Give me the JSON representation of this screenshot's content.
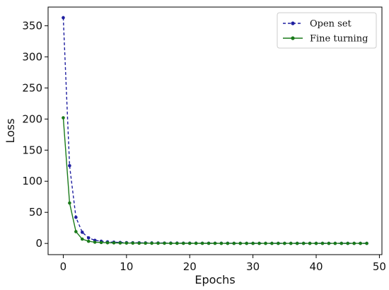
{
  "chart_data": {
    "type": "line",
    "xlabel": "Epochs",
    "ylabel": "Loss",
    "xlim": [
      -2.4,
      50.4
    ],
    "ylim": [
      -18,
      380
    ],
    "xticks": [
      0,
      10,
      20,
      30,
      40,
      50
    ],
    "yticks": [
      0,
      50,
      100,
      150,
      200,
      250,
      300,
      350
    ],
    "grid": false,
    "legend_position": "top-right",
    "x": [
      0,
      1,
      2,
      3,
      4,
      5,
      6,
      7,
      8,
      9,
      10,
      11,
      12,
      13,
      14,
      15,
      16,
      17,
      18,
      19,
      20,
      21,
      22,
      23,
      24,
      25,
      26,
      27,
      28,
      29,
      30,
      31,
      32,
      33,
      34,
      35,
      36,
      37,
      38,
      39,
      40,
      41,
      42,
      43,
      44,
      45,
      46,
      47,
      48
    ],
    "series": [
      {
        "name": "Open set",
        "color": "#1f1fa0",
        "line_style": "dashed",
        "marker": "dot",
        "values": [
          363,
          125,
          42,
          18,
          9,
          5,
          3.5,
          2.5,
          2,
          1.6,
          1.3,
          1.1,
          1,
          0.9,
          0.8,
          0.7,
          0.6,
          0.5,
          0.5,
          0.4,
          0.4,
          0.4,
          0.3,
          0.3,
          0.3,
          0.3,
          0.3,
          0.2,
          0.2,
          0.2,
          0.2,
          0.2,
          0.2,
          0.2,
          0.2,
          0.2,
          0.2,
          0.2,
          0.2,
          0.2,
          0.2,
          0.2,
          0.2,
          0.2,
          0.2,
          0.2,
          0.2,
          0.2,
          0.2
        ]
      },
      {
        "name": "Fine turning",
        "color": "#1a7a1a",
        "line_style": "solid",
        "marker": "dot",
        "values": [
          202,
          65,
          19,
          7,
          3.5,
          2,
          1.5,
          1.1,
          0.9,
          0.7,
          0.6,
          0.5,
          0.4,
          0.4,
          0.3,
          0.3,
          0.3,
          0.2,
          0.2,
          0.2,
          0.2,
          0.2,
          0.2,
          0.2,
          0.2,
          0.1,
          0.1,
          0.1,
          0.1,
          0.1,
          0.1,
          0.1,
          0.1,
          0.1,
          0.1,
          0.1,
          0.1,
          0.1,
          0.1,
          0.1,
          0.1,
          0.1,
          0.1,
          0.1,
          0.1,
          0.1,
          0.1,
          0.1,
          0.1
        ]
      }
    ]
  }
}
